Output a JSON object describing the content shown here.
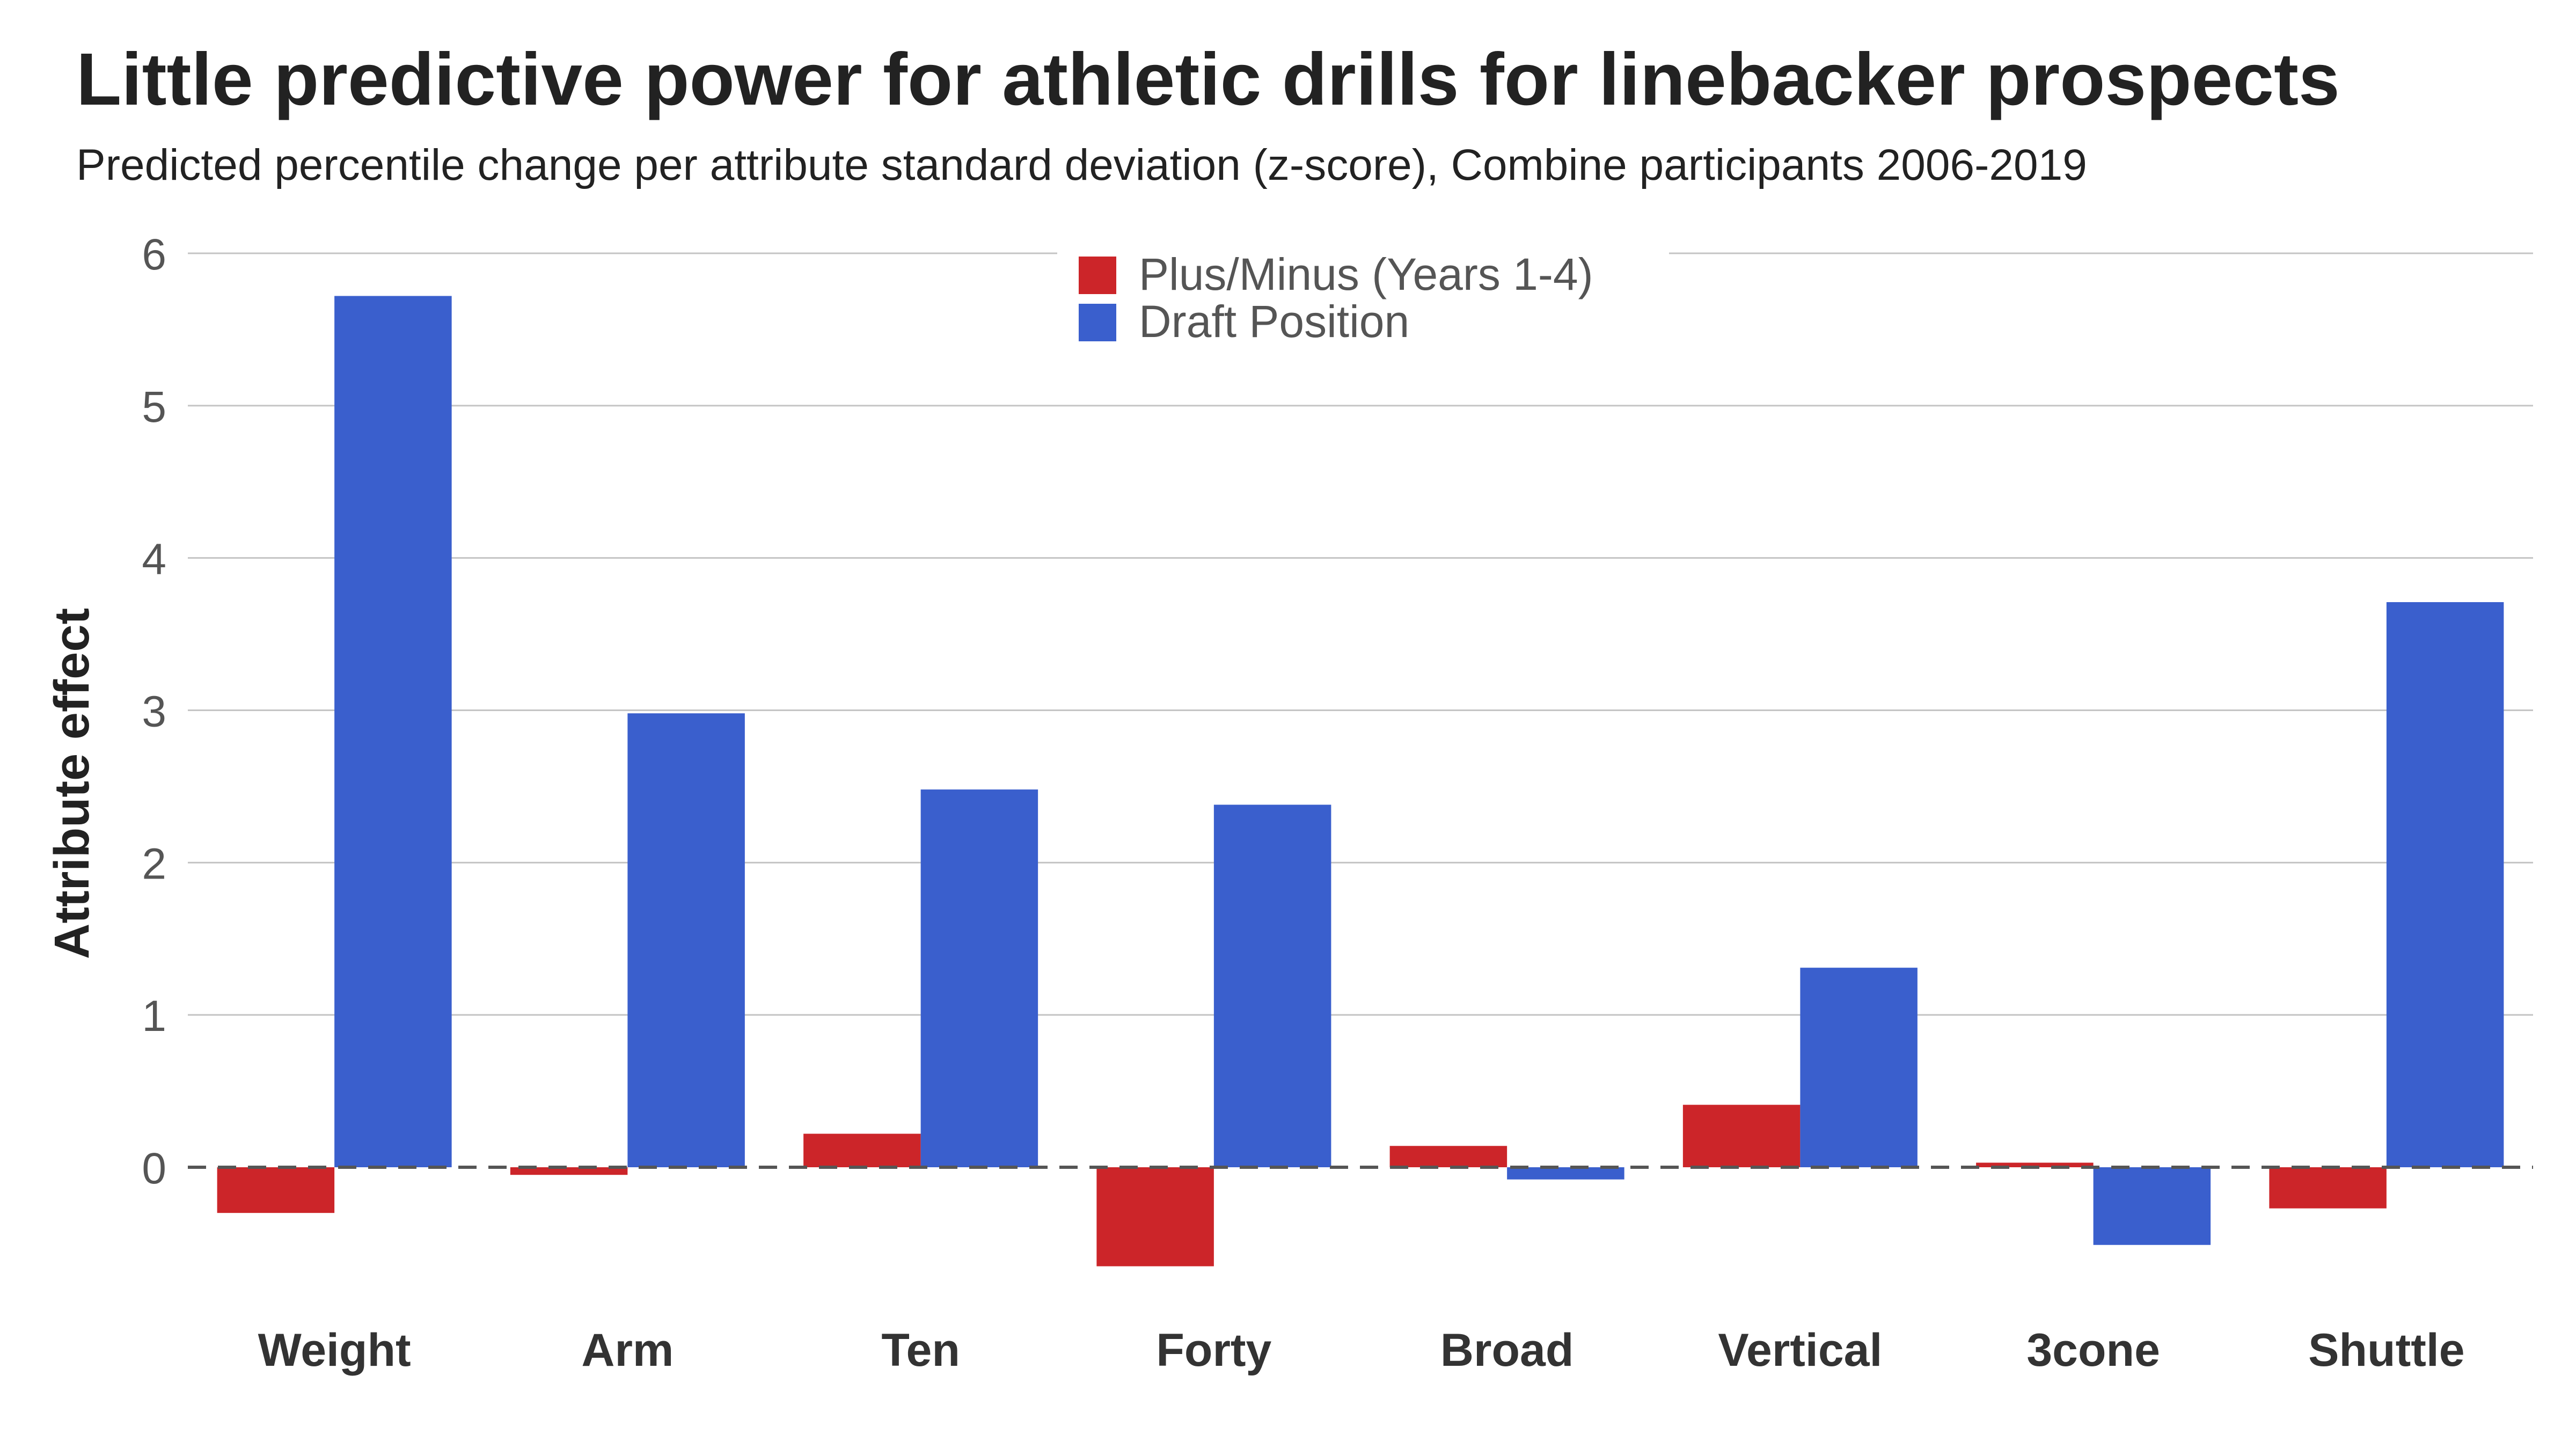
{
  "chart_data": {
    "type": "bar",
    "title": "Little predictive power for athletic drills for linebacker prospects",
    "subtitle": "Predicted percentile change per attribute standard deviation (z-score), Combine participants 2006-2019",
    "ylabel": "Attribute effect",
    "xlabel": "",
    "ylim": [
      -0.9,
      6
    ],
    "yticks": [
      0,
      1,
      2,
      3,
      4,
      5,
      6
    ],
    "grid": true,
    "legend_position": "top-center",
    "categories": [
      "Weight",
      "Arm",
      "Ten",
      "Forty",
      "Broad",
      "Vertical",
      "3cone",
      "Shuttle"
    ],
    "series": [
      {
        "name": "Plus/Minus (Years 1-4)",
        "color": "#cc2529",
        "values": [
          -0.3,
          -0.05,
          0.22,
          -0.65,
          0.14,
          0.41,
          0.03,
          -0.27
        ]
      },
      {
        "name": "Draft Position",
        "color": "#3a5fcd",
        "values": [
          5.72,
          2.98,
          2.48,
          2.38,
          -0.08,
          1.31,
          -0.51,
          3.71
        ]
      }
    ]
  }
}
